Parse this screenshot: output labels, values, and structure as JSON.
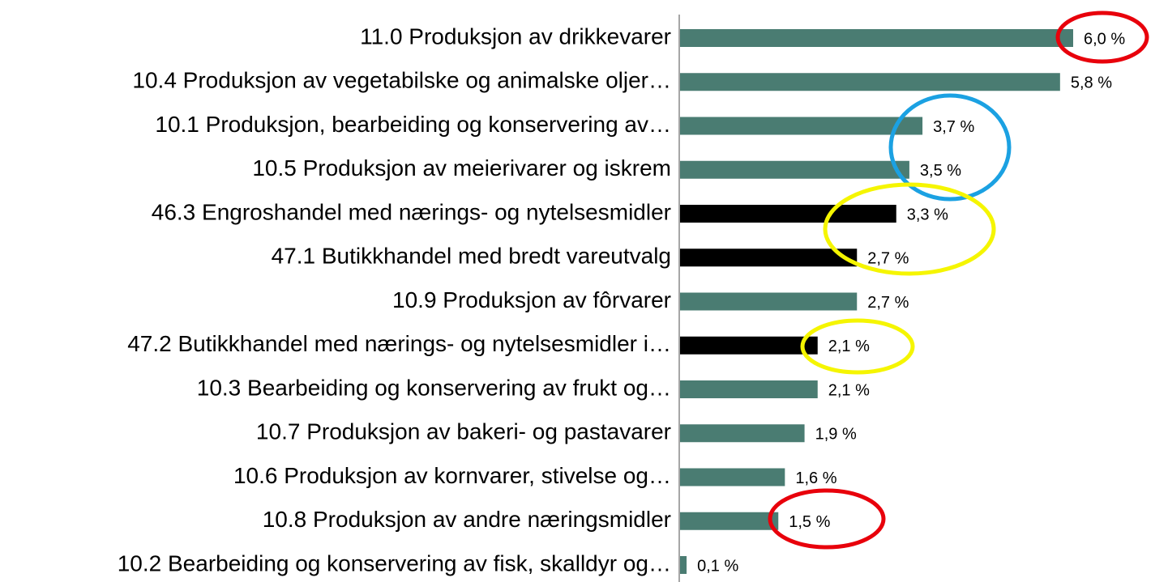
{
  "chart_data": {
    "type": "bar",
    "orientation": "horizontal",
    "categories": [
      "11.0 Produksjon av drikkevarer",
      "10.4 Produksjon av vegetabilske og animalske oljer…",
      "10.1 Produksjon, bearbeiding og konservering av…",
      "10.5 Produksjon av meierivarer og iskrem",
      "46.3 Engroshandel med nærings- og nytelsesmidler",
      "47.1 Butikkhandel med bredt vareutvalg",
      "10.9 Produksjon av fôrvarer",
      "47.2 Butikkhandel med nærings- og nytelsesmidler i…",
      "10.3 Bearbeiding og konservering av frukt og…",
      "10.7 Produksjon av bakeri- og pastavarer",
      "10.6 Produksjon av kornvarer, stivelse og…",
      "10.8 Produksjon av andre næringsmidler",
      "10.2 Bearbeiding og konservering av fisk, skalldyr og…"
    ],
    "values": [
      6.0,
      5.8,
      3.7,
      3.5,
      3.3,
      2.7,
      2.7,
      2.1,
      2.1,
      1.9,
      1.6,
      1.5,
      0.1
    ],
    "value_labels": [
      "6,0 %",
      "5,8 %",
      "3,7 %",
      "3,5 %",
      "3,3 %",
      "2,7 %",
      "2,7 %",
      "2,1 %",
      "2,1 %",
      "1,9 %",
      "1,6 %",
      "1,5 %",
      "0,1 %"
    ],
    "colors": [
      "#4a7c72",
      "#4a7c72",
      "#4a7c72",
      "#4a7c72",
      "#000000",
      "#000000",
      "#4a7c72",
      "#000000",
      "#4a7c72",
      "#4a7c72",
      "#4a7c72",
      "#4a7c72",
      "#4a7c72"
    ],
    "xlim": [
      0,
      6
    ]
  }
}
